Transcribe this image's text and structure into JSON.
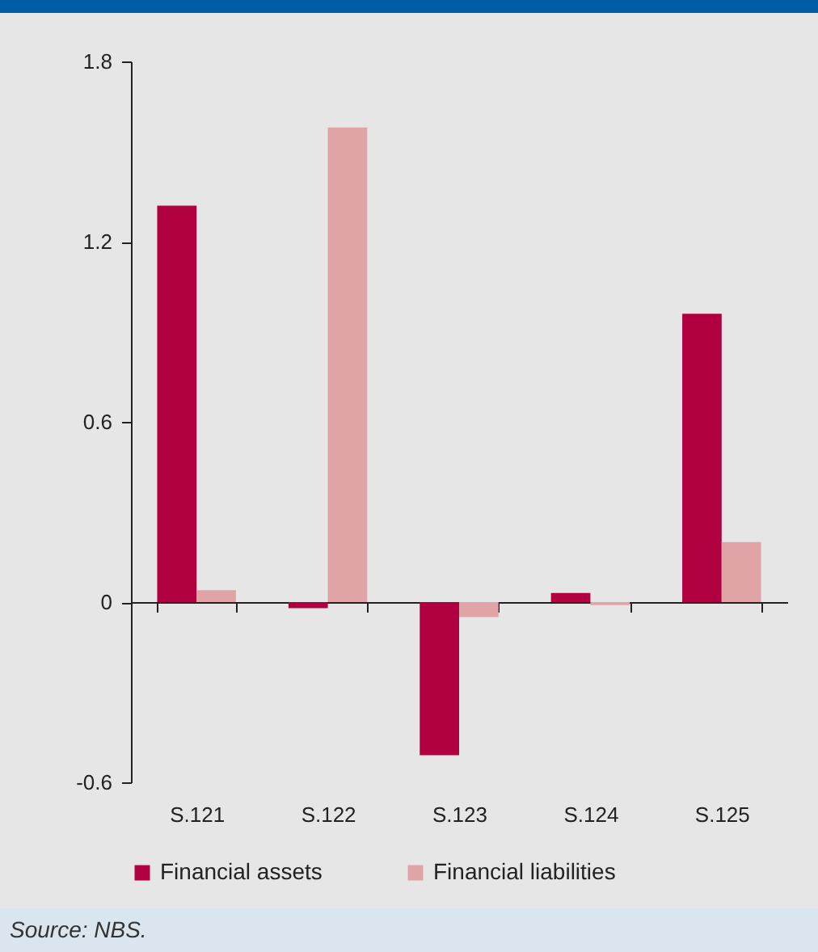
{
  "chart_data": {
    "type": "bar",
    "categories": [
      "S.121",
      "S.122",
      "S.123",
      "S.124",
      "S.125"
    ],
    "series": [
      {
        "name": "Financial assets",
        "color": "#b0003f",
        "values": [
          1.32,
          -0.02,
          -0.51,
          0.03,
          0.96
        ]
      },
      {
        "name": "Financial liabilities",
        "color": "#e0a4a6",
        "values": [
          0.04,
          1.58,
          -0.05,
          -0.01,
          0.2
        ]
      }
    ],
    "ylim": [
      -0.6,
      1.8
    ],
    "yticks": [
      -0.6,
      0,
      0.6,
      1.2,
      1.8
    ],
    "legend": "bottom",
    "annotations": [
      "Source: NBS."
    ]
  }
}
